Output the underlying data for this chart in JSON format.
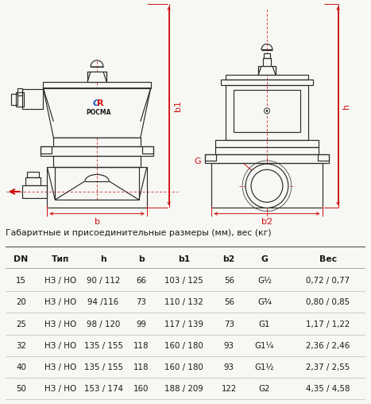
{
  "bg_color": "#f7f7f3",
  "table_title": "Габаритные и присоединительные размеры (мм), вес (кг)",
  "headers": [
    "DN",
    "Тип",
    "h",
    "b",
    "b1",
    "b2",
    "G",
    "Вес"
  ],
  "rows": [
    [
      "15",
      "НЗ / НО",
      "90 / 112",
      "66",
      "103 / 125",
      "56",
      "G½",
      "0,72 / 0,77"
    ],
    [
      "20",
      "НЗ / НО",
      "94 /116",
      "73",
      "110 / 132",
      "56",
      "G¾",
      "0,80 / 0,85"
    ],
    [
      "25",
      "НЗ / НО",
      "98 / 120",
      "99",
      "117 / 139",
      "73",
      "G1",
      "1,17 / 1,22"
    ],
    [
      "32",
      "НЗ / НО",
      "135 / 155",
      "118",
      "160 / 180",
      "93",
      "G1¼",
      "2,36 / 2,46"
    ],
    [
      "40",
      "НЗ / НО",
      "135 / 155",
      "118",
      "160 / 180",
      "93",
      "G1½",
      "2,37 / 2,55"
    ],
    [
      "50",
      "НЗ / НО",
      "153 / 174",
      "160",
      "188 / 209",
      "122",
      "G2",
      "4,35 / 4,58"
    ]
  ],
  "line_color": "#2a2a2a",
  "dim_color": "#cc1111",
  "text_color": "#1a1a1a",
  "header_color": "#1a1a1a"
}
